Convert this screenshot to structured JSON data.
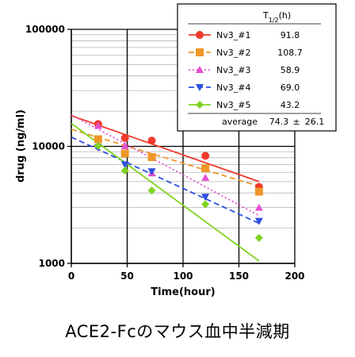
{
  "caption": "ACE2-Fcのマウス血中半減期",
  "chart_data": {
    "type": "scatter",
    "title": "",
    "xlabel": "Time(hour)",
    "ylabel": "drug (ng/ml)",
    "xlim": [
      0,
      200
    ],
    "ylim": [
      1000,
      100000
    ],
    "yscale": "log",
    "x_ticks": [
      "0",
      "50",
      "100",
      "150",
      "200"
    ],
    "y_ticks": [
      "1000",
      "10000",
      "100000"
    ],
    "grid": true,
    "legend_position": "top-right",
    "legend_header": "T",
    "legend_header_sub": "1/2",
    "legend_header_unit": "(h)",
    "series": [
      {
        "name": "Nv3_#1",
        "half_life": "91.8",
        "color": "#f03a2b",
        "marker": "circle",
        "line_style": "solid",
        "x": [
          24,
          48,
          72,
          120,
          168
        ],
        "y": [
          15500,
          11800,
          11200,
          8300,
          4500
        ],
        "fit_x": [
          0,
          168
        ],
        "fit_y": [
          18300,
          5000
        ]
      },
      {
        "name": "Nv3_#2",
        "half_life": "108.7",
        "color": "#f0962a",
        "marker": "square",
        "line_style": "dashed",
        "x": [
          24,
          48,
          72,
          120,
          168
        ],
        "y": [
          11500,
          8700,
          8100,
          6500,
          4100
        ],
        "fit_x": [
          0,
          168
        ],
        "fit_y": [
          14000,
          4560
        ]
      },
      {
        "name": "Nv3_#3",
        "half_life": "58.9",
        "color": "#e64fd0",
        "marker": "triangle-up",
        "line_style": "dotted",
        "x": [
          24,
          48,
          72,
          120,
          168
        ],
        "y": [
          15000,
          10100,
          5900,
          5400,
          3000
        ],
        "fit_x": [
          0,
          168
        ],
        "fit_y": [
          18600,
          2560
        ]
      },
      {
        "name": "Nv3_#4",
        "half_life": "69.0",
        "color": "#2d4fe0",
        "marker": "triangle-down",
        "line_style": "dashed",
        "x": [
          24,
          48,
          72,
          120,
          168
        ],
        "y": [
          9800,
          7000,
          6100,
          3700,
          2300
        ],
        "fit_x": [
          0,
          168
        ],
        "fit_y": [
          12000,
          2200
        ]
      },
      {
        "name": "Nv3_#5",
        "half_life": "43.2",
        "color": "#7ed321",
        "marker": "diamond",
        "line_style": "solid",
        "x": [
          24,
          48,
          72,
          120,
          168
        ],
        "y": [
          10100,
          6200,
          4200,
          3200,
          1650
        ],
        "fit_x": [
          0,
          168
        ],
        "fit_y": [
          15700,
          1050
        ]
      }
    ],
    "average": {
      "label": "average",
      "value": "74.3",
      "pm": "±",
      "sd": "26.1"
    }
  }
}
